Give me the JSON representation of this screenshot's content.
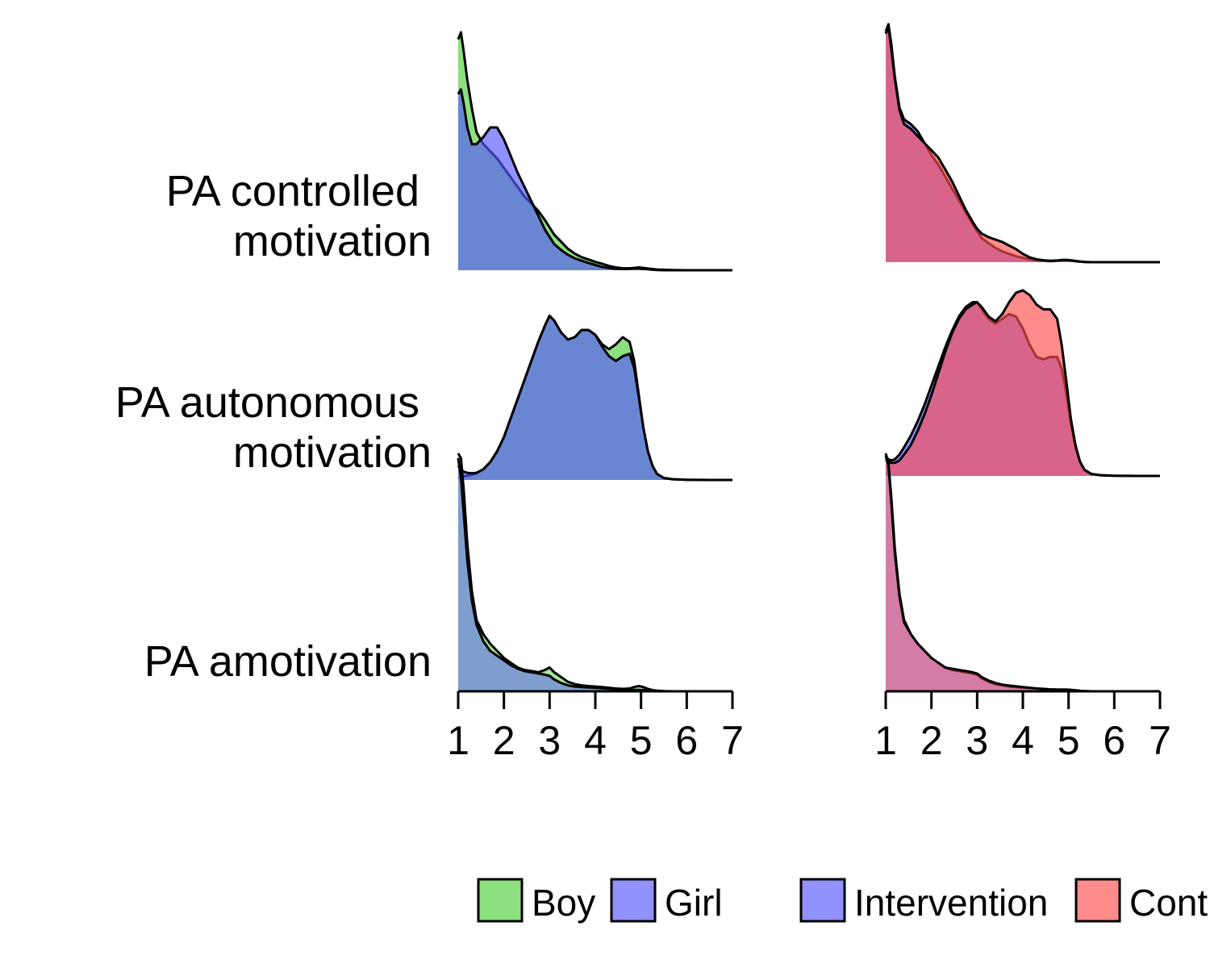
{
  "chart_data": {
    "type": "area",
    "x_ticks": [
      "1",
      "2",
      "3",
      "4",
      "5",
      "6",
      "7"
    ],
    "xlim": [
      1,
      7
    ],
    "rows": [
      {
        "key": "controlled",
        "label_lines": [
          "PA controlled",
          "motivation"
        ]
      },
      {
        "key": "autonomous",
        "label_lines": [
          "PA autonomous",
          "motivation"
        ]
      },
      {
        "key": "amotivation",
        "label_lines": [
          "PA amotivation"
        ]
      }
    ],
    "x": [
      1,
      1.06,
      1.12,
      1.2,
      1.3,
      1.4,
      1.55,
      1.7,
      1.85,
      2,
      2.15,
      2.3,
      2.45,
      2.6,
      2.75,
      2.9,
      3,
      3.1,
      3.25,
      3.4,
      3.55,
      3.7,
      3.85,
      4,
      4.15,
      4.3,
      4.45,
      4.6,
      4.75,
      4.85,
      4.95,
      5.05,
      5.15,
      5.25,
      5.35,
      5.5,
      5.7,
      6,
      6.5,
      7
    ],
    "panels": [
      {
        "name": "left",
        "series": [
          {
            "name": "Boy",
            "color": "#4fcf3a",
            "densities": {
              "controlled": [
                0.97,
                1.0,
                0.92,
                0.8,
                0.68,
                0.58,
                0.53,
                0.5,
                0.47,
                0.43,
                0.39,
                0.35,
                0.31,
                0.28,
                0.25,
                0.21,
                0.18,
                0.15,
                0.12,
                0.09,
                0.07,
                0.055,
                0.045,
                0.035,
                0.027,
                0.018,
                0.012,
                0.008,
                0.008,
                0.01,
                0.012,
                0.01,
                0.007,
                0.005,
                0.003,
                0.002,
                0.001,
                0.0,
                0.0,
                0.0
              ],
              "autonomous": [
                0.01,
                0.012,
                0.015,
                0.018,
                0.022,
                0.028,
                0.045,
                0.075,
                0.12,
                0.18,
                0.26,
                0.34,
                0.42,
                0.5,
                0.58,
                0.65,
                0.69,
                0.67,
                0.62,
                0.59,
                0.6,
                0.63,
                0.63,
                0.61,
                0.57,
                0.55,
                0.57,
                0.6,
                0.58,
                0.5,
                0.36,
                0.22,
                0.12,
                0.06,
                0.025,
                0.008,
                0.003,
                0.001,
                0.0,
                0.0
              ],
              "amotivation": [
                1.0,
                0.98,
                0.85,
                0.62,
                0.42,
                0.3,
                0.24,
                0.2,
                0.17,
                0.14,
                0.12,
                0.1,
                0.09,
                0.085,
                0.08,
                0.09,
                0.1,
                0.08,
                0.06,
                0.04,
                0.03,
                0.025,
                0.022,
                0.02,
                0.018,
                0.015,
                0.012,
                0.01,
                0.012,
                0.018,
                0.022,
                0.018,
                0.01,
                0.005,
                0.003,
                0.001,
                0.0,
                0.0,
                0.0,
                0.0
              ]
            }
          },
          {
            "name": "Girl",
            "color": "#5656ff",
            "densities": {
              "controlled": [
                0.74,
                0.76,
                0.7,
                0.6,
                0.53,
                0.53,
                0.56,
                0.6,
                0.6,
                0.55,
                0.48,
                0.41,
                0.35,
                0.29,
                0.23,
                0.17,
                0.14,
                0.11,
                0.085,
                0.065,
                0.05,
                0.04,
                0.03,
                0.022,
                0.014,
                0.009,
                0.006,
                0.005,
                0.006,
                0.007,
                0.007,
                0.005,
                0.004,
                0.002,
                0.001,
                0.0,
                0.0,
                0.0,
                0.0,
                0.0
              ],
              "autonomous": [
                0.06,
                0.045,
                0.035,
                0.03,
                0.028,
                0.03,
                0.045,
                0.075,
                0.12,
                0.18,
                0.26,
                0.34,
                0.42,
                0.5,
                0.58,
                0.65,
                0.69,
                0.67,
                0.62,
                0.59,
                0.6,
                0.63,
                0.63,
                0.61,
                0.56,
                0.52,
                0.5,
                0.52,
                0.53,
                0.47,
                0.35,
                0.22,
                0.12,
                0.06,
                0.025,
                0.008,
                0.003,
                0.001,
                0.0,
                0.0
              ],
              "amotivation": [
                0.98,
                0.9,
                0.75,
                0.55,
                0.38,
                0.28,
                0.21,
                0.17,
                0.15,
                0.13,
                0.11,
                0.095,
                0.085,
                0.08,
                0.075,
                0.07,
                0.065,
                0.05,
                0.035,
                0.025,
                0.02,
                0.018,
                0.016,
                0.015,
                0.013,
                0.011,
                0.009,
                0.007,
                0.006,
                0.006,
                0.006,
                0.005,
                0.004,
                0.002,
                0.001,
                0.0,
                0.0,
                0.0,
                0.0,
                0.0
              ]
            }
          }
        ]
      },
      {
        "name": "right",
        "series": [
          {
            "name": "Intervention",
            "color": "#5656ff",
            "densities": {
              "controlled": [
                0.97,
                1.0,
                0.92,
                0.78,
                0.65,
                0.6,
                0.58,
                0.55,
                0.5,
                0.45,
                0.41,
                0.36,
                0.31,
                0.26,
                0.21,
                0.16,
                0.13,
                0.1,
                0.08,
                0.06,
                0.045,
                0.035,
                0.025,
                0.018,
                0.012,
                0.008,
                0.005,
                0.004,
                0.005,
                0.007,
                0.008,
                0.006,
                0.004,
                0.002,
                0.001,
                0.0,
                0.0,
                0.0,
                0.0,
                0.0
              ],
              "autonomous": [
                0.08,
                0.07,
                0.065,
                0.07,
                0.09,
                0.12,
                0.17,
                0.23,
                0.3,
                0.38,
                0.46,
                0.54,
                0.61,
                0.67,
                0.71,
                0.73,
                0.73,
                0.7,
                0.66,
                0.64,
                0.66,
                0.68,
                0.67,
                0.62,
                0.55,
                0.5,
                0.49,
                0.5,
                0.5,
                0.45,
                0.35,
                0.22,
                0.12,
                0.06,
                0.025,
                0.008,
                0.003,
                0.001,
                0.0,
                0.0
              ],
              "amotivation": [
                1.0,
                0.96,
                0.82,
                0.6,
                0.41,
                0.3,
                0.24,
                0.2,
                0.17,
                0.14,
                0.12,
                0.1,
                0.09,
                0.085,
                0.08,
                0.075,
                0.07,
                0.055,
                0.04,
                0.03,
                0.025,
                0.02,
                0.018,
                0.016,
                0.014,
                0.012,
                0.01,
                0.008,
                0.007,
                0.007,
                0.007,
                0.006,
                0.004,
                0.002,
                0.001,
                0.0,
                0.0,
                0.0,
                0.0,
                0.0
              ]
            }
          },
          {
            "name": "Control",
            "color": "#ff4d4d",
            "densities": {
              "controlled": [
                0.96,
                0.99,
                0.9,
                0.77,
                0.64,
                0.58,
                0.56,
                0.53,
                0.5,
                0.47,
                0.44,
                0.39,
                0.34,
                0.28,
                0.22,
                0.17,
                0.14,
                0.12,
                0.105,
                0.095,
                0.085,
                0.07,
                0.055,
                0.035,
                0.02,
                0.012,
                0.008,
                0.006,
                0.007,
                0.009,
                0.01,
                0.008,
                0.005,
                0.003,
                0.001,
                0.0,
                0.0,
                0.0,
                0.0,
                0.0
              ],
              "autonomous": [
                0.07,
                0.06,
                0.055,
                0.055,
                0.065,
                0.09,
                0.13,
                0.19,
                0.26,
                0.34,
                0.43,
                0.52,
                0.6,
                0.66,
                0.7,
                0.72,
                0.73,
                0.71,
                0.67,
                0.65,
                0.68,
                0.73,
                0.77,
                0.78,
                0.76,
                0.72,
                0.7,
                0.7,
                0.66,
                0.55,
                0.4,
                0.24,
                0.13,
                0.06,
                0.025,
                0.008,
                0.003,
                0.001,
                0.0,
                0.0
              ],
              "amotivation": [
                0.99,
                0.95,
                0.8,
                0.58,
                0.4,
                0.29,
                0.24,
                0.2,
                0.17,
                0.14,
                0.12,
                0.1,
                0.095,
                0.09,
                0.085,
                0.08,
                0.075,
                0.06,
                0.045,
                0.035,
                0.028,
                0.024,
                0.021,
                0.018,
                0.015,
                0.012,
                0.01,
                0.008,
                0.007,
                0.007,
                0.007,
                0.006,
                0.004,
                0.002,
                0.001,
                0.0,
                0.0,
                0.0,
                0.0,
                0.0
              ]
            }
          }
        ]
      }
    ],
    "legend": {
      "position": "bottom",
      "groups": [
        [
          {
            "label": "Boy",
            "color": "#4fcf3a"
          },
          {
            "label": "Girl",
            "color": "#5656ff"
          }
        ],
        [
          {
            "label": "Intervention",
            "color": "#5656ff"
          },
          {
            "label": "Control",
            "color": "#ff4d4d"
          }
        ]
      ]
    }
  }
}
